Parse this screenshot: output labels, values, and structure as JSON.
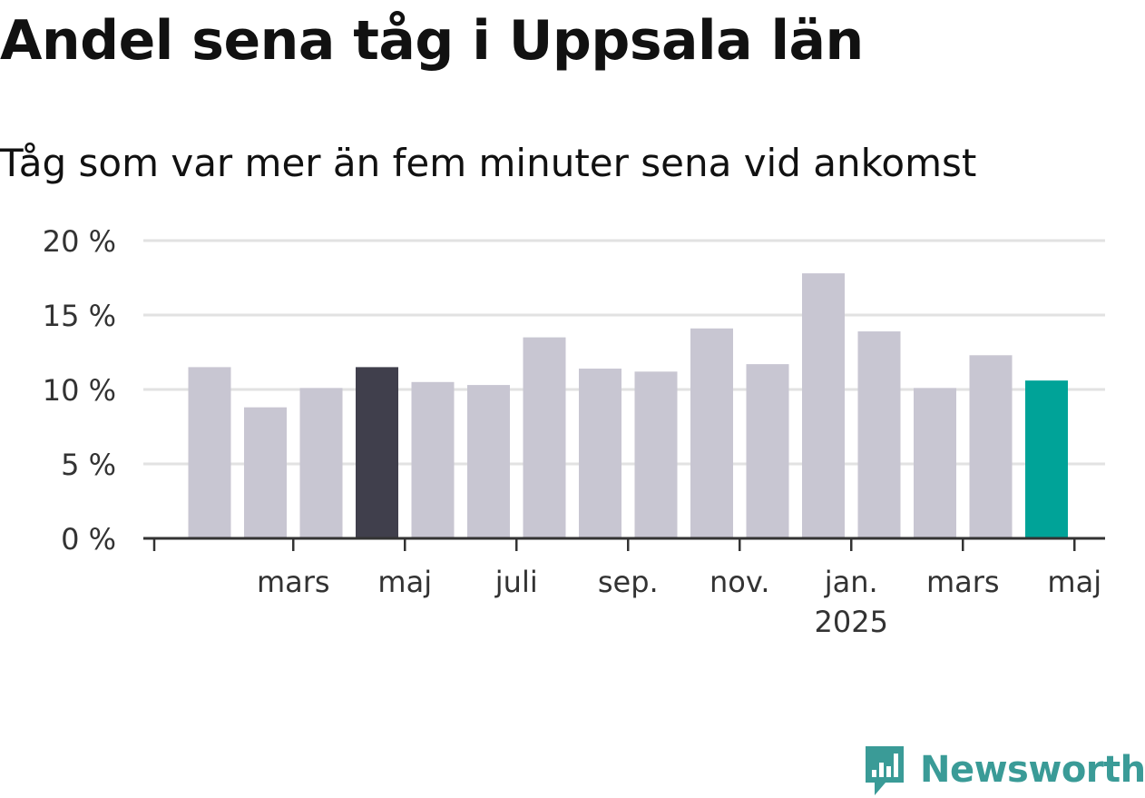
{
  "title": "Andel sena tåg i Uppsala län",
  "subtitle": "Tåg som var mer än fem minuter sena vid ankomst",
  "logo": {
    "text": "Newsworthy",
    "icon": "newsworthy-chart-icon"
  },
  "colors": {
    "default_bar": "#c8c6d2",
    "highlight_bar": "#403f4c",
    "latest_bar": "#00a398",
    "gridline": "#e2e2e2",
    "axis": "#333333",
    "text": "#333333"
  },
  "chart_data": {
    "type": "bar",
    "ylim": [
      0,
      20
    ],
    "yticks": [
      0,
      5,
      10,
      15,
      20
    ],
    "ytick_labels": [
      "0 %",
      "5 %",
      "10 %",
      "15 %",
      "20 %"
    ],
    "grid": true,
    "categories": [
      "2024-01",
      "2024-02",
      "2024-03",
      "2024-04",
      "2024-05",
      "2024-06",
      "2024-07",
      "2024-08",
      "2024-09",
      "2024-10",
      "2024-11",
      "2024-12",
      "2025-01",
      "2025-02",
      "2025-03",
      "2025-04",
      "2025-05"
    ],
    "values": [
      11.5,
      8.8,
      10.1,
      11.5,
      10.5,
      10.3,
      13.5,
      11.4,
      11.2,
      14.1,
      11.7,
      17.8,
      13.9,
      10.1,
      12.3,
      10.6,
      null
    ],
    "highlight": {
      "2024-04": "highlight_bar",
      "2025-04": "latest_bar"
    },
    "xtick_labels": [
      {
        "category": "2024-03",
        "label": "mars",
        "sub": ""
      },
      {
        "category": "2024-05",
        "label": "maj",
        "sub": ""
      },
      {
        "category": "2024-07",
        "label": "juli",
        "sub": ""
      },
      {
        "category": "2024-09",
        "label": "sep.",
        "sub": ""
      },
      {
        "category": "2024-11",
        "label": "nov.",
        "sub": ""
      },
      {
        "category": "2025-01",
        "label": "jan.",
        "sub": "2025"
      },
      {
        "category": "2025-03",
        "label": "mars",
        "sub": ""
      },
      {
        "category": "2025-05",
        "label": "maj",
        "sub": ""
      }
    ],
    "xlabel": "",
    "ylabel": ""
  }
}
